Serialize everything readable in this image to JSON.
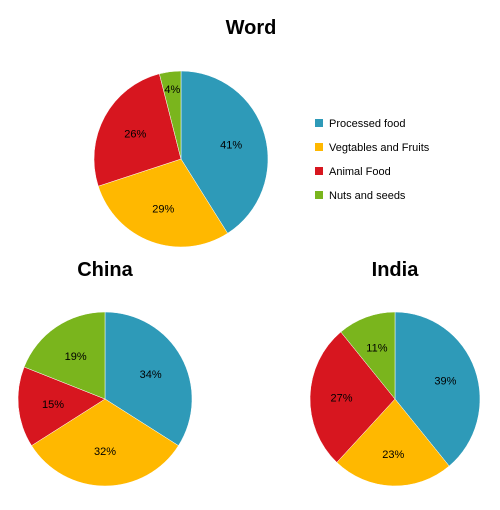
{
  "chart_data": [
    {
      "type": "pie",
      "title": "Word",
      "categories": [
        "Processed food",
        "Vegtables and Fruits",
        "Animal Food",
        "Nuts and seeds"
      ],
      "values": [
        41,
        29,
        26,
        4
      ],
      "labels": [
        "41%",
        "29%",
        "26%",
        "4%"
      ],
      "colors": [
        "#2e9ab8",
        "#ffb800",
        "#d7161f",
        "#7ab51d"
      ],
      "legend_position": "right"
    },
    {
      "type": "pie",
      "title": "China",
      "categories": [
        "Processed food",
        "Vegtables and Fruits",
        "Animal Food",
        "Nuts and seeds"
      ],
      "values": [
        34,
        32,
        15,
        19
      ],
      "labels": [
        "34%",
        "32%",
        "15%",
        "19%"
      ],
      "colors": [
        "#2e9ab8",
        "#ffb800",
        "#d7161f",
        "#7ab51d"
      ]
    },
    {
      "type": "pie",
      "title": "India",
      "categories": [
        "Processed food",
        "Vegtables and Fruits",
        "Animal Food",
        "Nuts and seeds"
      ],
      "values": [
        39,
        23,
        27,
        11
      ],
      "labels": [
        "39%",
        "23%",
        "27%",
        "11%"
      ],
      "colors": [
        "#2e9ab8",
        "#ffb800",
        "#d7161f",
        "#7ab51d"
      ]
    }
  ],
  "legend": {
    "items": [
      {
        "label": "Processed food",
        "color": "#2e9ab8"
      },
      {
        "label": "Vegtables and Fruits",
        "color": "#ffb800"
      },
      {
        "label": "Animal Food",
        "color": "#d7161f"
      },
      {
        "label": "Nuts and seeds",
        "color": "#7ab51d"
      }
    ]
  }
}
